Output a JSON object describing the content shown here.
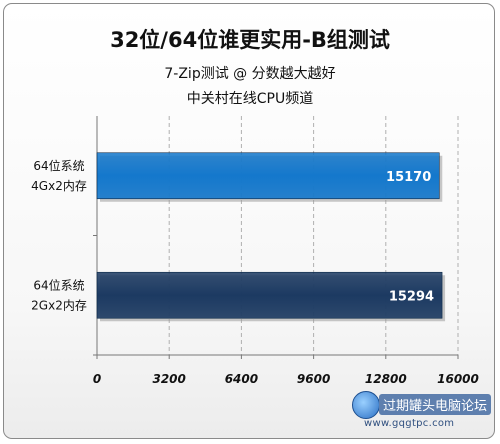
{
  "chart_data": {
    "type": "bar",
    "orientation": "horizontal",
    "title": "32位/64位谁更实用-B组测试",
    "subtitle": "7-Zip测试 @ 分数越大越好",
    "source": "中关村在线CPU频道",
    "categories": [
      [
        "64位系统",
        "4Gx2内存"
      ],
      [
        "64位系统",
        "2Gx2内存"
      ]
    ],
    "values": [
      15170,
      15294
    ],
    "value_labels": [
      "15170",
      "15294"
    ],
    "bar_colors": [
      "#1478cc",
      "#1c3a62"
    ],
    "xlim": [
      0,
      16000
    ],
    "x_ticks": [
      0,
      3200,
      6400,
      9600,
      12800,
      16000
    ],
    "x_tick_labels": [
      "0",
      "3200",
      "6400",
      "9600",
      "12800",
      "16000"
    ],
    "grid": "vertical dashed"
  },
  "watermark": {
    "title": "过期罐头电脑论坛",
    "url": "www.gqgtpc.com"
  }
}
